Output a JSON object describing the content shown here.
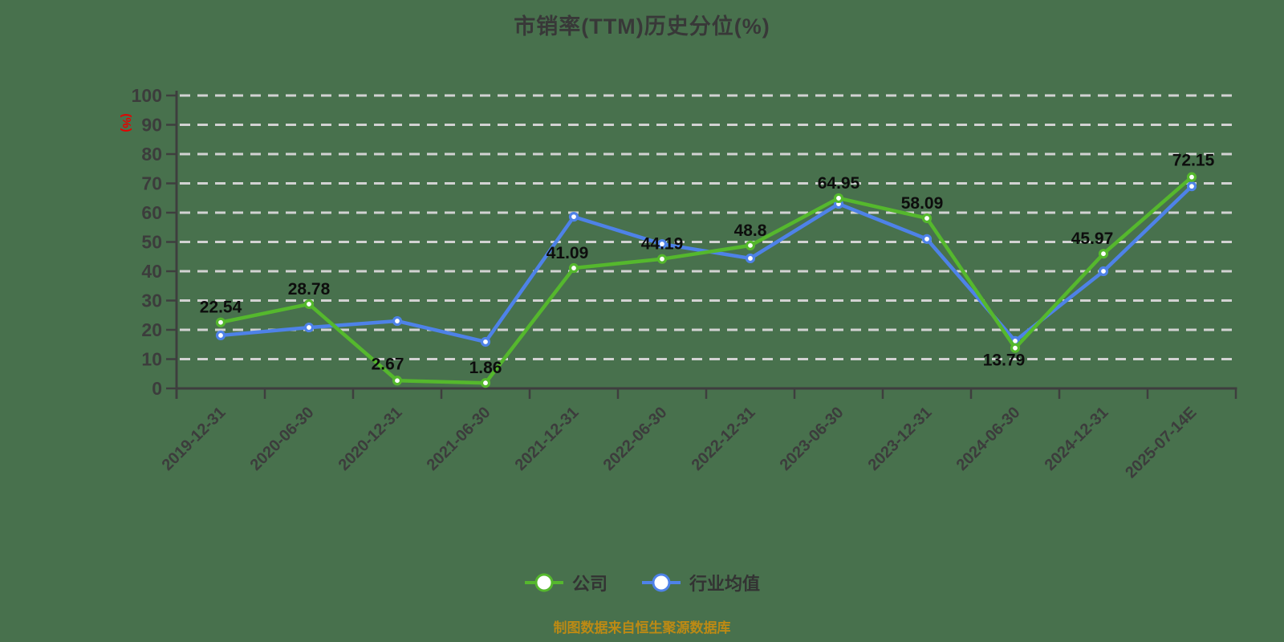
{
  "chart_data": {
    "type": "line",
    "title": "市销率(TTM)历史分位(%)",
    "ylabel": "(%)",
    "ylabel_color": "#e60000",
    "categories": [
      "2019-12-31",
      "2020-06-30",
      "2020-12-31",
      "2021-06-30",
      "2021-12-31",
      "2022-06-30",
      "2022-12-31",
      "2023-06-30",
      "2023-12-31",
      "2024-06-30",
      "2024-12-31",
      "2025-07-14E"
    ],
    "series": [
      {
        "name": "公司",
        "color": "#55b82d",
        "data_labels": true,
        "values": [
          22.54,
          28.78,
          2.67,
          1.86,
          41.09,
          44.19,
          48.8,
          64.95,
          58.09,
          13.79,
          45.97,
          72.15
        ]
      },
      {
        "name": "行业均值",
        "color": "#4e82e8",
        "data_labels": false,
        "values": [
          18.1,
          20.8,
          23.0,
          15.9,
          58.6,
          49.3,
          44.4,
          63.0,
          51.0,
          16.2,
          40.0,
          69.0
        ]
      }
    ],
    "ylim": [
      0,
      100
    ],
    "ytick_step": 10,
    "ytick_labels": [
      "0",
      "10",
      "20",
      "30",
      "40",
      "50",
      "60",
      "70",
      "80",
      "90",
      "100"
    ],
    "grid": "dashed-horizontal",
    "legend_position": "bottom",
    "marker": "circle-white-fill"
  },
  "footer": {
    "text": "制图数据来自恒生聚源数据库",
    "color": "#bd8a14"
  }
}
